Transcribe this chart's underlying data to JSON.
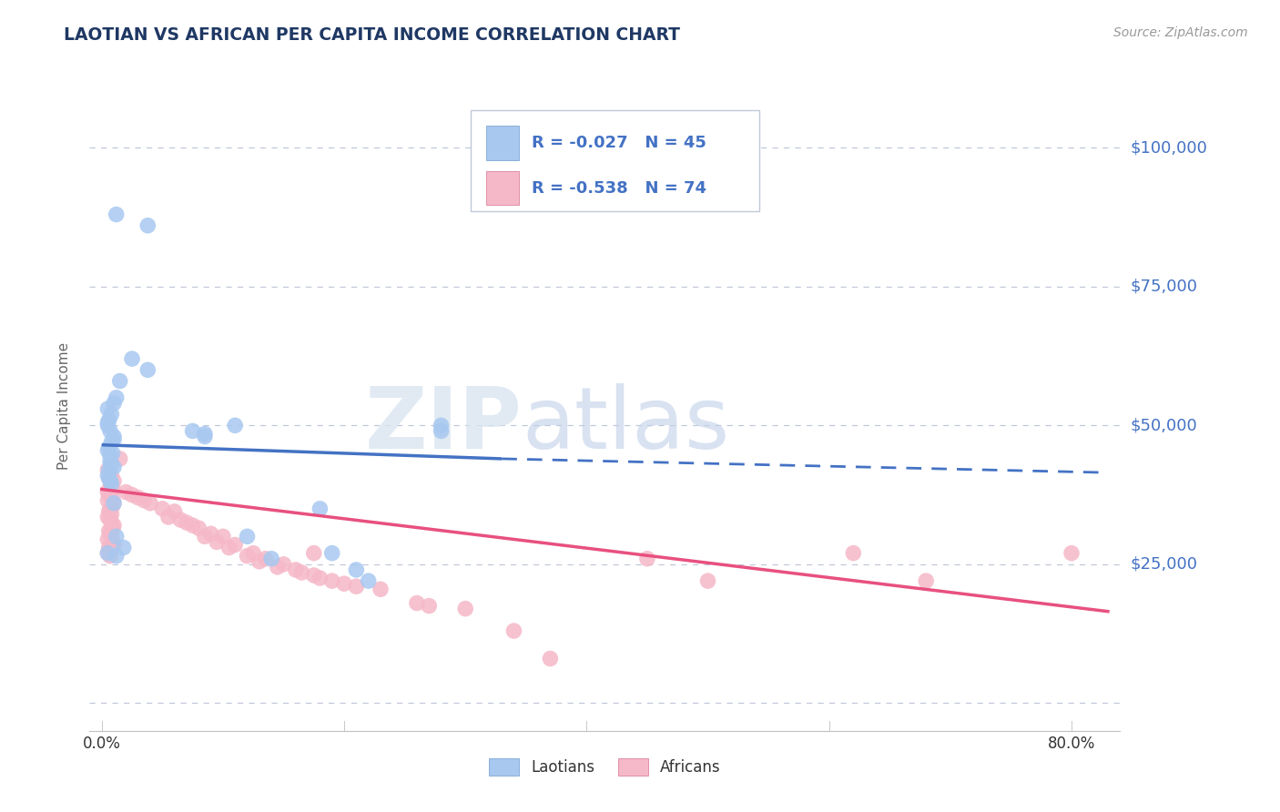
{
  "title": "LAOTIAN VS AFRICAN PER CAPITA INCOME CORRELATION CHART",
  "source": "Source: ZipAtlas.com",
  "ylabel": "Per Capita Income",
  "yticks": [
    0,
    25000,
    50000,
    75000,
    100000
  ],
  "ytick_labels": [
    "",
    "$25,000",
    "$50,000",
    "$75,000",
    "$100,000"
  ],
  "ylim": [
    -5000,
    112000
  ],
  "xlim": [
    -0.01,
    0.84
  ],
  "laotian_color": "#a8c8f0",
  "african_color": "#f5b8c8",
  "laotian_line_color": "#4472c4",
  "african_line_color": "#e85080",
  "laotian_line_solid": [
    [
      0.0,
      46500
    ],
    [
      0.33,
      44000
    ]
  ],
  "laotian_line_dashed": [
    [
      0.33,
      44000
    ],
    [
      0.83,
      41500
    ]
  ],
  "african_line": [
    [
      0.0,
      38500
    ],
    [
      0.83,
      16500
    ]
  ],
  "title_color": "#1f3864",
  "axis_label_color": "#4472c4",
  "background_color": "#ffffff",
  "legend_R_laotian": "R = -0.027",
  "legend_N_laotian": "N = 45",
  "legend_R_african": "R = -0.538",
  "legend_N_african": "N = 74",
  "watermark_zip": "ZIP",
  "watermark_atlas": "atlas",
  "laotian_scatter_x": [
    0.012,
    0.038,
    0.012,
    0.038,
    0.015,
    0.025,
    0.01,
    0.005,
    0.008,
    0.006,
    0.005,
    0.005,
    0.007,
    0.01,
    0.01,
    0.008,
    0.006,
    0.005,
    0.009,
    0.007,
    0.007,
    0.008,
    0.01,
    0.006,
    0.005,
    0.006,
    0.007,
    0.008,
    0.005,
    0.012,
    0.018,
    0.01,
    0.012,
    0.075,
    0.11,
    0.14,
    0.12,
    0.18,
    0.19,
    0.21,
    0.22,
    0.28,
    0.28,
    0.085,
    0.085
  ],
  "laotian_scatter_y": [
    88000,
    86000,
    55000,
    60000,
    58000,
    62000,
    54000,
    53000,
    52000,
    51000,
    50500,
    50000,
    49000,
    48000,
    47500,
    47000,
    46000,
    45500,
    45000,
    44500,
    43500,
    43000,
    42500,
    42000,
    41000,
    40500,
    40000,
    39500,
    27000,
    26500,
    28000,
    36000,
    30000,
    49000,
    50000,
    26000,
    30000,
    35000,
    27000,
    24000,
    22000,
    50000,
    49000,
    48500,
    48000
  ],
  "african_scatter_x": [
    0.005,
    0.008,
    0.01,
    0.006,
    0.007,
    0.009,
    0.005,
    0.006,
    0.008,
    0.005,
    0.01,
    0.009,
    0.007,
    0.006,
    0.008,
    0.005,
    0.007,
    0.008,
    0.01,
    0.009,
    0.006,
    0.007,
    0.008,
    0.005,
    0.009,
    0.01,
    0.006,
    0.008,
    0.005,
    0.007,
    0.015,
    0.02,
    0.025,
    0.03,
    0.035,
    0.04,
    0.05,
    0.06,
    0.055,
    0.065,
    0.07,
    0.075,
    0.08,
    0.09,
    0.085,
    0.1,
    0.095,
    0.11,
    0.105,
    0.125,
    0.12,
    0.135,
    0.13,
    0.15,
    0.145,
    0.16,
    0.165,
    0.175,
    0.18,
    0.19,
    0.2,
    0.21,
    0.175,
    0.23,
    0.26,
    0.27,
    0.3,
    0.34,
    0.37,
    0.45,
    0.5,
    0.62,
    0.68,
    0.8
  ],
  "african_scatter_y": [
    42000,
    41000,
    40000,
    40500,
    39000,
    38500,
    38000,
    37500,
    37000,
    36500,
    36000,
    35500,
    35000,
    34500,
    34000,
    33500,
    33000,
    32500,
    32000,
    31500,
    31000,
    30500,
    30000,
    29500,
    29000,
    28500,
    28000,
    27500,
    27000,
    26500,
    44000,
    38000,
    37500,
    37000,
    36500,
    36000,
    35000,
    34500,
    33500,
    33000,
    32500,
    32000,
    31500,
    30500,
    30000,
    30000,
    29000,
    28500,
    28000,
    27000,
    26500,
    26000,
    25500,
    25000,
    24500,
    24000,
    23500,
    23000,
    22500,
    22000,
    21500,
    21000,
    27000,
    20500,
    18000,
    17500,
    17000,
    13000,
    8000,
    26000,
    22000,
    27000,
    22000,
    27000
  ]
}
